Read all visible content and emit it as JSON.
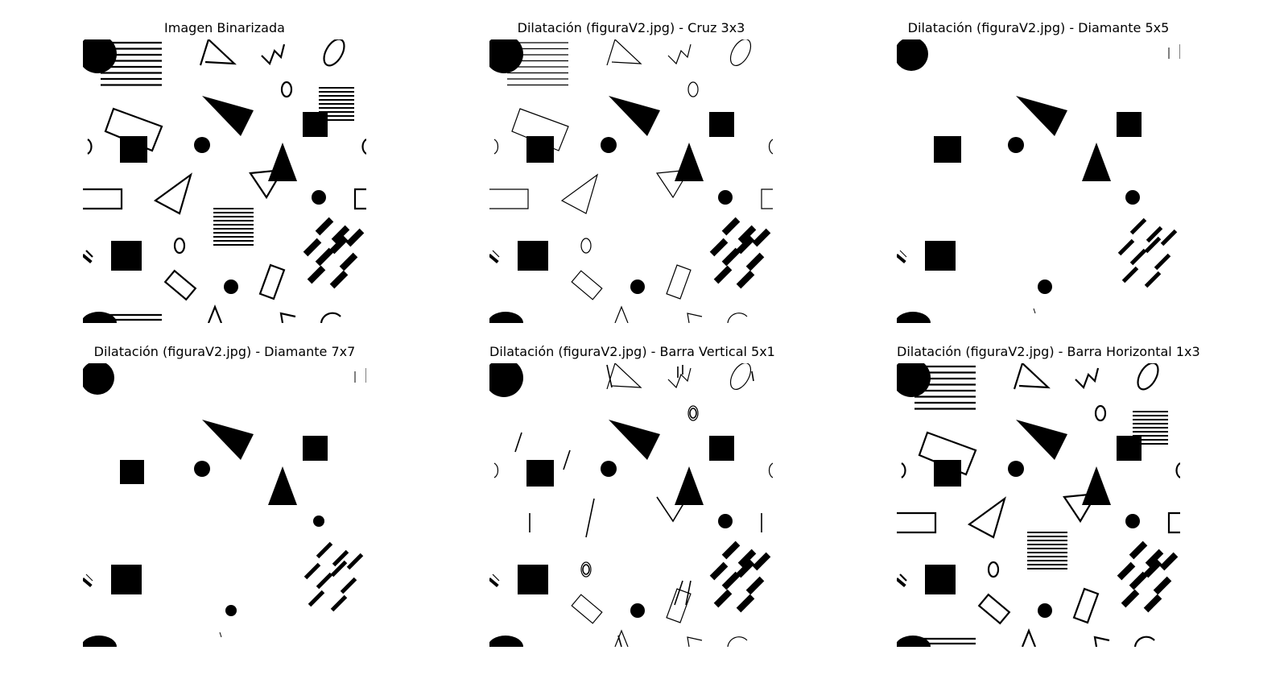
{
  "figure": {
    "panels": [
      {
        "title": "Imagen Binarizada",
        "variant": "binarized"
      },
      {
        "title": "Dilatación (figuraV2.jpg) - Cruz 3x3",
        "variant": "cross3"
      },
      {
        "title": "Dilatación (figuraV2.jpg) - Diamante 5x5",
        "variant": "diamond5"
      },
      {
        "title": "Dilatación (figuraV2.jpg) - Diamante 7x7",
        "variant": "diamond7"
      },
      {
        "title": "Dilatación (figuraV2.jpg) - Barra Vertical 5x1",
        "variant": "vbar"
      },
      {
        "title": "Dilatación (figuraV2.jpg) - Barra Horizontal 1x3",
        "variant": "hbar"
      }
    ],
    "colors": {
      "foreground": "#000000",
      "background": "#ffffff"
    }
  }
}
